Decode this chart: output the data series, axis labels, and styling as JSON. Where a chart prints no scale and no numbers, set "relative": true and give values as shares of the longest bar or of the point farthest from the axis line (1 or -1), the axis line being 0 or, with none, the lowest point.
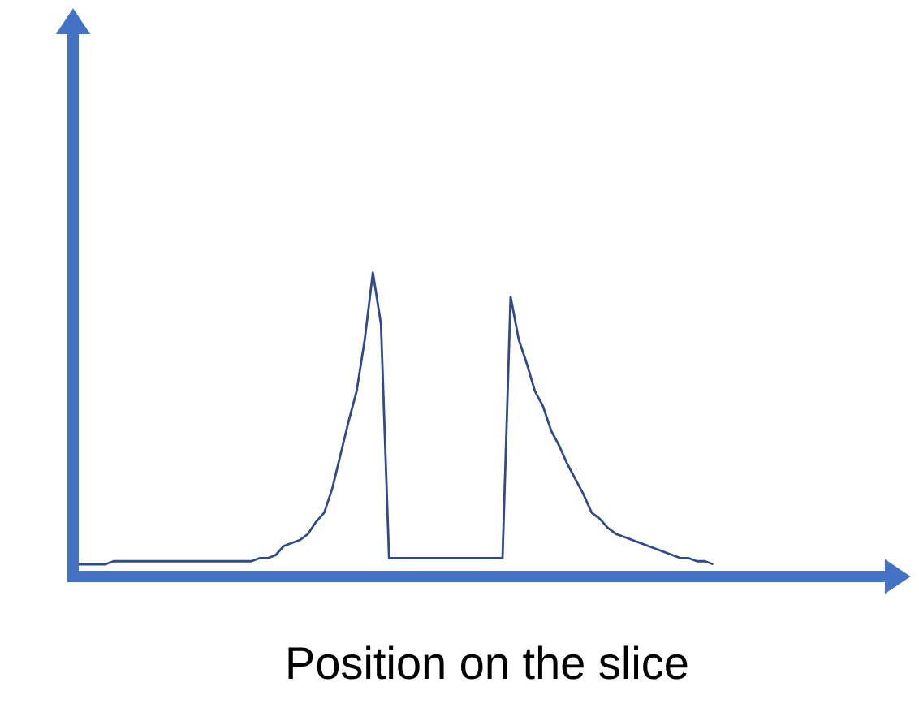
{
  "chart_data": {
    "type": "line",
    "xlabel": "Position on the slice",
    "relative": true,
    "color": "#2f4b8a",
    "categories": [
      null,
      null,
      null,
      null,
      null,
      null,
      null,
      null,
      null,
      null,
      null,
      null,
      null,
      null,
      null,
      null,
      null,
      null,
      null,
      null,
      null,
      null,
      null,
      null,
      null,
      null,
      null,
      null,
      null,
      null,
      null,
      null,
      null,
      null,
      null,
      null,
      null,
      null,
      null,
      null,
      null,
      null,
      null,
      null,
      null,
      null,
      null,
      null,
      null,
      null,
      null,
      null,
      null,
      null,
      null,
      null,
      null,
      null,
      null,
      null,
      null,
      null,
      null,
      null,
      null,
      null,
      null,
      null,
      null,
      null,
      null,
      null,
      null,
      null,
      null,
      null,
      null,
      null,
      null,
      null
    ],
    "values": [
      0.04,
      0.04,
      0.04,
      0.04,
      0.04,
      0.05,
      0.05,
      0.05,
      0.05,
      0.05,
      0.05,
      0.05,
      0.05,
      0.05,
      0.05,
      0.05,
      0.05,
      0.05,
      0.05,
      0.05,
      0.05,
      0.05,
      0.05,
      0.06,
      0.06,
      0.07,
      0.1,
      0.11,
      0.12,
      0.14,
      0.18,
      0.21,
      0.29,
      0.4,
      0.51,
      0.61,
      0.78,
      1,
      0.83,
      0.06,
      0.06,
      0.06,
      0.06,
      0.06,
      0.06,
      0.06,
      0.06,
      0.06,
      0.06,
      0.06,
      0.06,
      0.06,
      0.06,
      0.06,
      0.92,
      0.78,
      0.7,
      0.61,
      0.56,
      0.48,
      0.43,
      0.37,
      0.32,
      0.27,
      0.21,
      0.19,
      0.16,
      0.14,
      0.13,
      0.12,
      0.11,
      0.1,
      0.09,
      0.08,
      0.07,
      0.06,
      0.06,
      0.05,
      0.05,
      0.04
    ]
  }
}
